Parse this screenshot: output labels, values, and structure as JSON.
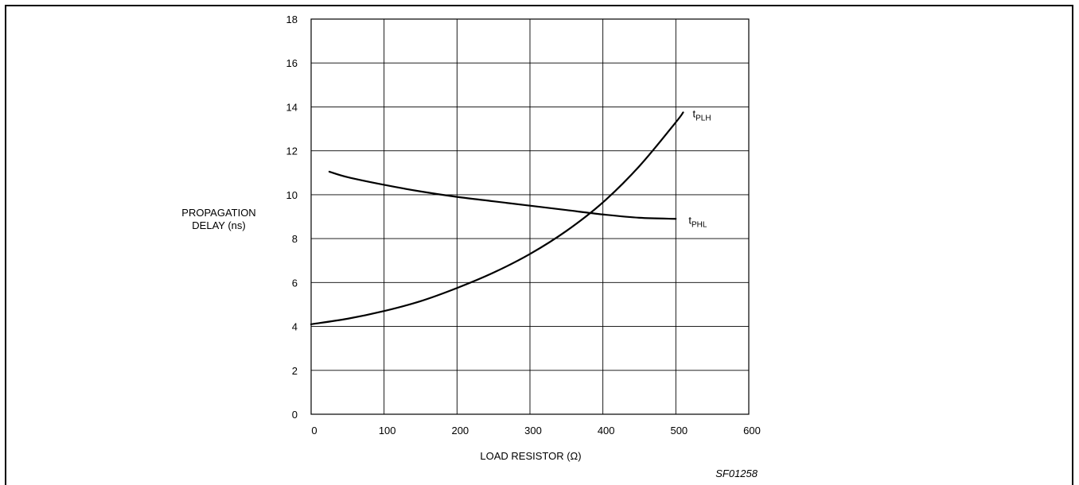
{
  "chart_data": {
    "type": "line",
    "title": "",
    "xlabel": "LOAD RESISTOR (Ω)",
    "ylabel": [
      "PROPAGATION",
      "DELAY (ns)"
    ],
    "xlim": [
      0,
      600
    ],
    "ylim": [
      0,
      18
    ],
    "xticks": [
      0,
      100,
      200,
      300,
      400,
      500,
      600
    ],
    "yticks": [
      0,
      2,
      4,
      6,
      8,
      10,
      12,
      14,
      16,
      18
    ],
    "grid": true,
    "series": [
      {
        "name": "tPLH",
        "label_main": "t",
        "label_sub": "PLH",
        "x": [
          0,
          50,
          100,
          150,
          200,
          250,
          300,
          350,
          400,
          450,
          500,
          510
        ],
        "y": [
          4.1,
          4.35,
          4.7,
          5.15,
          5.75,
          6.45,
          7.3,
          8.35,
          9.65,
          11.3,
          13.3,
          13.75
        ]
      },
      {
        "name": "tPHL",
        "label_main": "t",
        "label_sub": "PHL",
        "x": [
          25,
          50,
          100,
          150,
          200,
          250,
          300,
          350,
          400,
          450,
          500
        ],
        "y": [
          11.05,
          10.8,
          10.45,
          10.15,
          9.9,
          9.7,
          9.5,
          9.3,
          9.1,
          8.95,
          8.9
        ]
      }
    ],
    "figure_code": "SF01258"
  }
}
